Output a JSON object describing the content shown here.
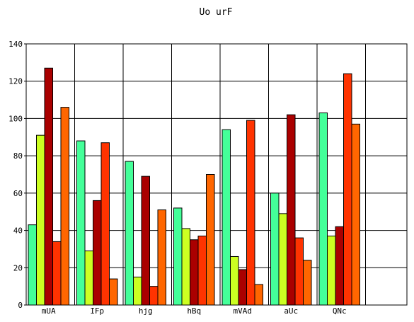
{
  "chart_data": {
    "type": "bar",
    "title": "Uo urF",
    "xlabel": "",
    "ylabel": "",
    "ylim": [
      0,
      140
    ],
    "yticks": [
      0,
      20,
      40,
      60,
      80,
      100,
      120,
      140
    ],
    "grid": true,
    "categories": [
      "mUA",
      "IFp",
      "hjg",
      "hBq",
      "mVAd",
      "aUc",
      "QNc"
    ],
    "series": [
      {
        "color": "#44ff99",
        "values": [
          43,
          88,
          77,
          52,
          94,
          60,
          103
        ]
      },
      {
        "color": "#ccff22",
        "values": [
          91,
          29,
          15,
          41,
          26,
          49,
          37
        ]
      },
      {
        "color": "#aa0000",
        "values": [
          127,
          56,
          69,
          35,
          19,
          102,
          42
        ]
      },
      {
        "color": "#ff3300",
        "values": [
          34,
          87,
          10,
          37,
          99,
          36,
          124
        ]
      },
      {
        "color": "#ff6600",
        "values": [
          106,
          14,
          51,
          70,
          11,
          24,
          97
        ]
      }
    ]
  }
}
